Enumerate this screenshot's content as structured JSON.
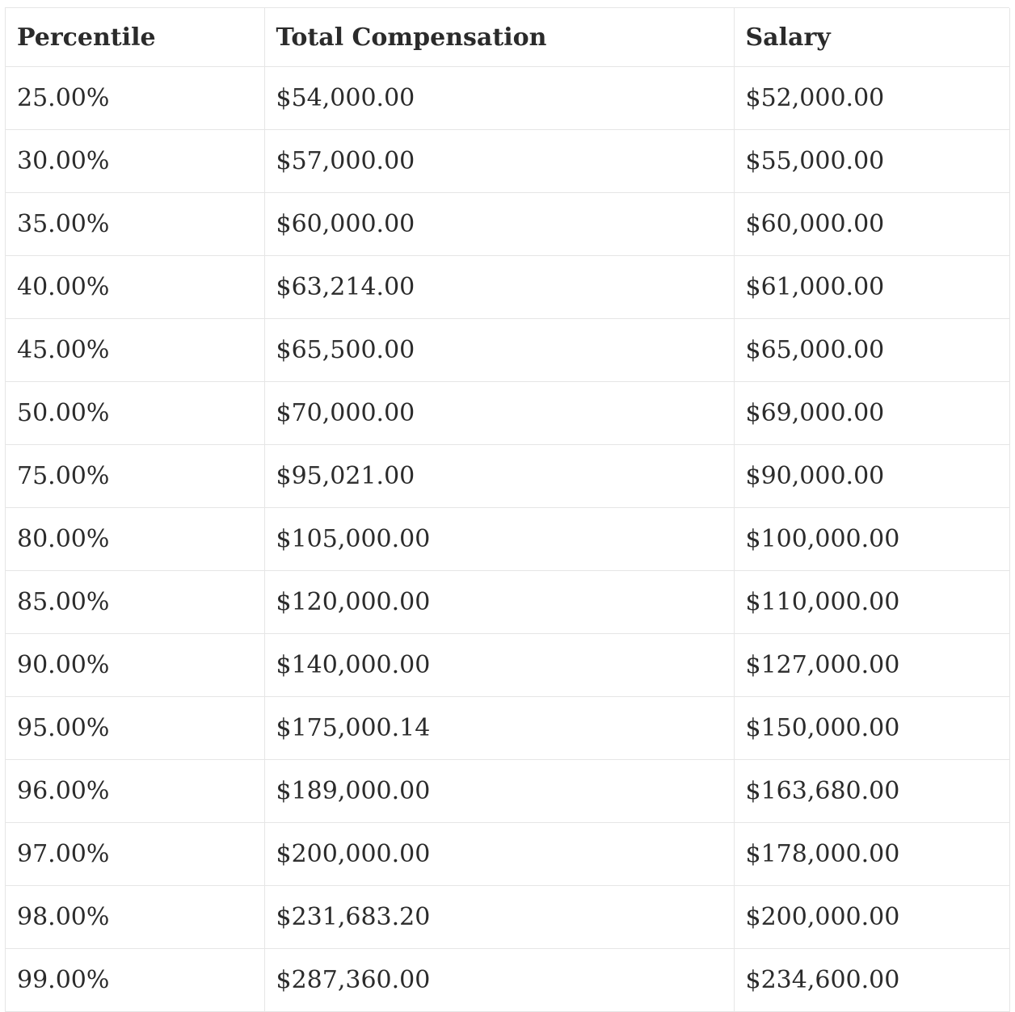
{
  "table": {
    "headers": [
      "Percentile",
      "Total Compensation",
      "Salary"
    ],
    "rows": [
      [
        "25.00%",
        "$54,000.00",
        "$52,000.00"
      ],
      [
        "30.00%",
        "$57,000.00",
        "$55,000.00"
      ],
      [
        "35.00%",
        "$60,000.00",
        "$60,000.00"
      ],
      [
        "40.00%",
        "$63,214.00",
        "$61,000.00"
      ],
      [
        "45.00%",
        "$65,500.00",
        "$65,000.00"
      ],
      [
        "50.00%",
        "$70,000.00",
        "$69,000.00"
      ],
      [
        "75.00%",
        "$95,021.00",
        "$90,000.00"
      ],
      [
        "80.00%",
        "$105,000.00",
        "$100,000.00"
      ],
      [
        "85.00%",
        "$120,000.00",
        "$110,000.00"
      ],
      [
        "90.00%",
        "$140,000.00",
        "$127,000.00"
      ],
      [
        "95.00%",
        "$175,000.14",
        "$150,000.00"
      ],
      [
        "96.00%",
        "$189,000.00",
        "$163,680.00"
      ],
      [
        "97.00%",
        "$200,000.00",
        "$178,000.00"
      ],
      [
        "98.00%",
        "$231,683.20",
        "$200,000.00"
      ],
      [
        "99.00%",
        "$287,360.00",
        "$234,600.00"
      ]
    ]
  }
}
